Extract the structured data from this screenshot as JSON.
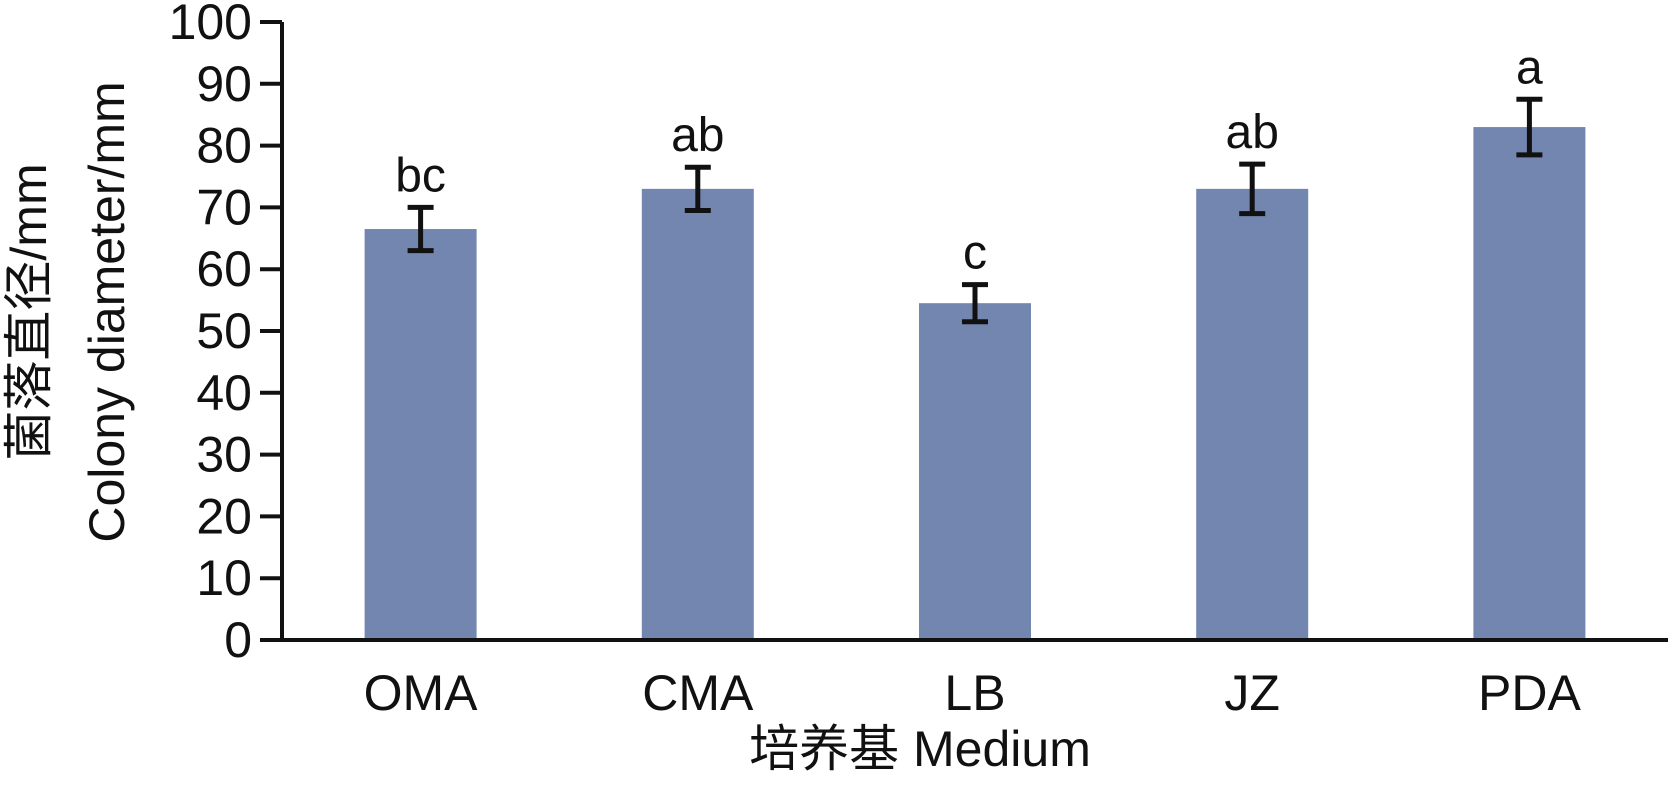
{
  "chart_data": {
    "type": "bar",
    "categories": [
      "OMA",
      "CMA",
      "LB",
      "JZ",
      "PDA"
    ],
    "values": [
      66.5,
      73.0,
      54.5,
      73.0,
      83.0
    ],
    "error": [
      3.5,
      3.5,
      3.0,
      4.0,
      4.5
    ],
    "significance": [
      "bc",
      "ab",
      "c",
      "ab",
      "a"
    ],
    "xlabel": "培养基 Medium",
    "ylabel_cn": "菌落直径/mm",
    "ylabel_en": "Colony diameter/mm",
    "ylim": [
      0,
      100
    ],
    "yticks": [
      "0",
      "10",
      "20",
      "30",
      "40",
      "50",
      "60",
      "70",
      "80",
      "90",
      "100"
    ],
    "grid": false,
    "legend": "none",
    "bar_color": "#7286B0"
  }
}
